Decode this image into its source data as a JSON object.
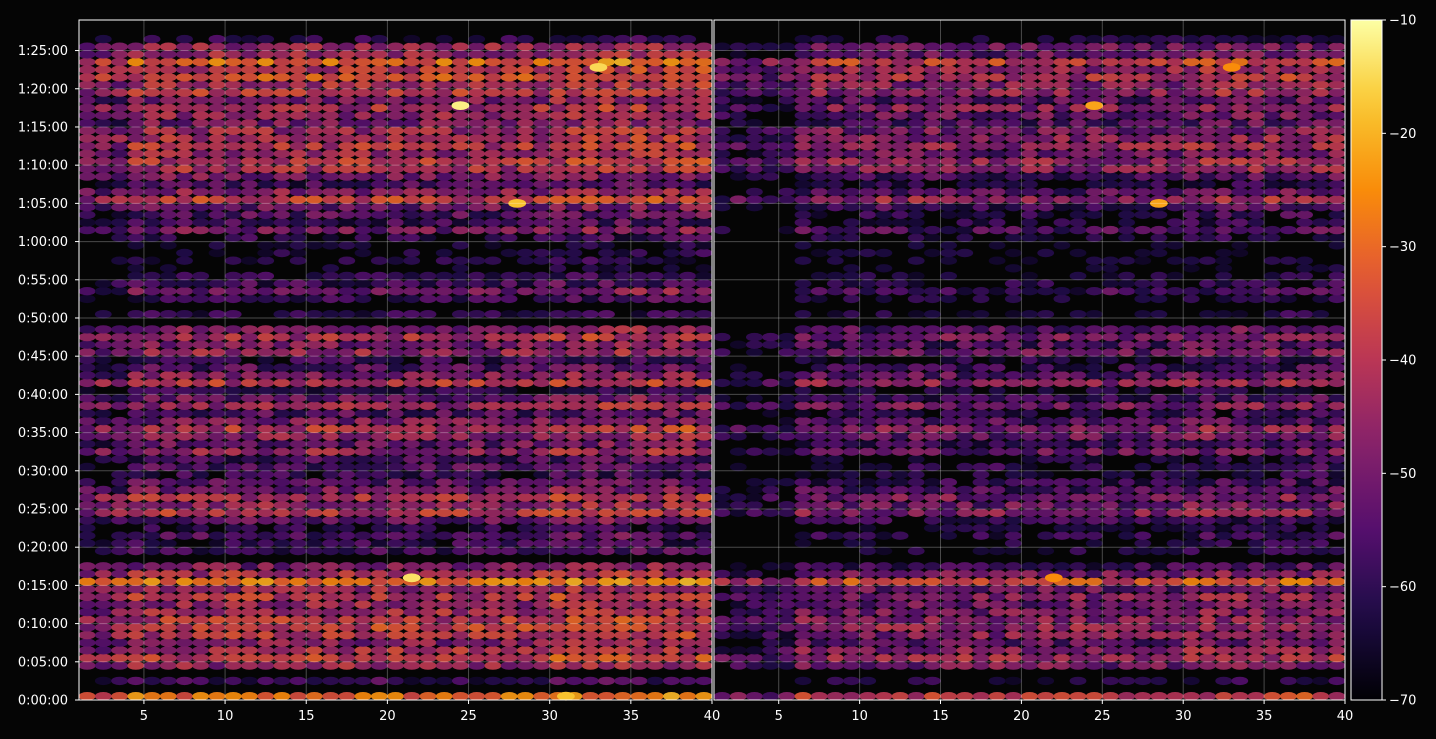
{
  "chart_data": {
    "type": "heatmap",
    "title": "",
    "xlabel": "",
    "ylabel": "",
    "colormap": "inferno",
    "background": "#050505",
    "grid": true,
    "panels": [
      {
        "name": "",
        "xlim": [
          1,
          40
        ],
        "x_tick_values": [
          5,
          10,
          15,
          20,
          25,
          30,
          35,
          40
        ],
        "x_tick_labels": [
          "5",
          "10",
          "15",
          "20",
          "25",
          "30",
          "35",
          "40"
        ],
        "y_tick_labels": [
          "0:00:00",
          "0:05:00",
          "0:10:00",
          "0:15:00",
          "0:20:00",
          "0:25:00",
          "0:30:00",
          "0:35:00",
          "0:40:00",
          "0:45:00",
          "0:50:00",
          "0:55:00",
          "1:00:00",
          "1:05:00",
          "1:10:00",
          "1:15:00",
          "1:20:00",
          "1:25:00"
        ],
        "hotspots": [
          {
            "x": 24.5,
            "y_min": 77.3,
            "value": -12
          },
          {
            "x": 33,
            "y_min": 82.3,
            "value": -15
          },
          {
            "x": 21.5,
            "y_min": 15.5,
            "value": -14
          },
          {
            "x": 28,
            "y_min": 64.5,
            "value": -18
          },
          {
            "x": 31,
            "y_min": 0,
            "value": -18
          }
        ]
      },
      {
        "name": "",
        "xlim": [
          1,
          40
        ],
        "x_tick_values": [
          5,
          10,
          15,
          20,
          25,
          30,
          35,
          40
        ],
        "x_tick_labels": [
          "5",
          "10",
          "15",
          "20",
          "25",
          "30",
          "35",
          "40"
        ],
        "hotspots": [
          {
            "x": 24.5,
            "y_min": 77.3,
            "value": -22
          },
          {
            "x": 28.5,
            "y_min": 64.5,
            "value": -22
          },
          {
            "x": 22,
            "y_min": 15.5,
            "value": -25
          },
          {
            "x": 33,
            "y_min": 82.3,
            "value": -25
          }
        ]
      }
    ],
    "ylim": [
      "0:00:00",
      "1:29:00"
    ],
    "rows_y_min": [
      0,
      2,
      4,
      5,
      6,
      7,
      8,
      9,
      10,
      11,
      12,
      13,
      14,
      15,
      16,
      17,
      19,
      20,
      21,
      22,
      23,
      24,
      25,
      26,
      27,
      28,
      29,
      30,
      31,
      32,
      33,
      34,
      35,
      36,
      37,
      38,
      39,
      40,
      41,
      42,
      43,
      44,
      45,
      46,
      47,
      48,
      50,
      52,
      53,
      54,
      55,
      56,
      57,
      58,
      59,
      60,
      61,
      62,
      63,
      64,
      65,
      66,
      67,
      68,
      69,
      70,
      71,
      72,
      73,
      74,
      75,
      76,
      77,
      78,
      79,
      80,
      81,
      82,
      83,
      84,
      85,
      86
    ],
    "row_intensity_left": [
      -30,
      -58,
      -45,
      -38,
      -42,
      -48,
      -40,
      -38,
      -40,
      -42,
      -45,
      -40,
      -44,
      -28,
      -42,
      -50,
      -58,
      -60,
      -55,
      -62,
      -52,
      -40,
      -45,
      -42,
      -50,
      -54,
      -60,
      -56,
      -58,
      -45,
      -52,
      -46,
      -40,
      -50,
      -56,
      -44,
      -52,
      -62,
      -40,
      -48,
      -55,
      -60,
      -45,
      -50,
      -42,
      -48,
      -62,
      -60,
      -50,
      -58,
      -62,
      -68,
      -65,
      -66,
      -68,
      -62,
      -50,
      -58,
      -55,
      -52,
      -38,
      -48,
      -58,
      -50,
      -42,
      -40,
      -45,
      -40,
      -42,
      -44,
      -50,
      -46,
      -42,
      -48,
      -40,
      -42,
      -35,
      -40,
      -30,
      -45,
      -45,
      -62
    ],
    "row_intensity_right": [
      -40,
      -65,
      -50,
      -44,
      -48,
      -54,
      -48,
      -46,
      -48,
      -50,
      -52,
      -48,
      -52,
      -35,
      -50,
      -58,
      -65,
      -66,
      -62,
      -66,
      -60,
      -48,
      -52,
      -50,
      -56,
      -60,
      -65,
      -62,
      -64,
      -52,
      -58,
      -52,
      -48,
      -56,
      -62,
      -50,
      -58,
      -66,
      -46,
      -54,
      -60,
      -64,
      -52,
      -56,
      -50,
      -55,
      -66,
      -66,
      -58,
      -64,
      -66,
      -70,
      -68,
      -68,
      -70,
      -66,
      -56,
      -64,
      -62,
      -58,
      -45,
      -55,
      -64,
      -56,
      -48,
      -46,
      -52,
      -46,
      -48,
      -50,
      -56,
      -52,
      -48,
      -54,
      -46,
      -48,
      -42,
      -46,
      -38,
      -52,
      -52,
      -66
    ],
    "colorbar": {
      "vmin": -70,
      "vmax": -10,
      "tick_values": [
        -10,
        -20,
        -30,
        -40,
        -50,
        -60,
        -70
      ],
      "tick_labels": [
        "−10",
        "−20",
        "−30",
        "−40",
        "−50",
        "−60",
        "−70"
      ]
    }
  }
}
